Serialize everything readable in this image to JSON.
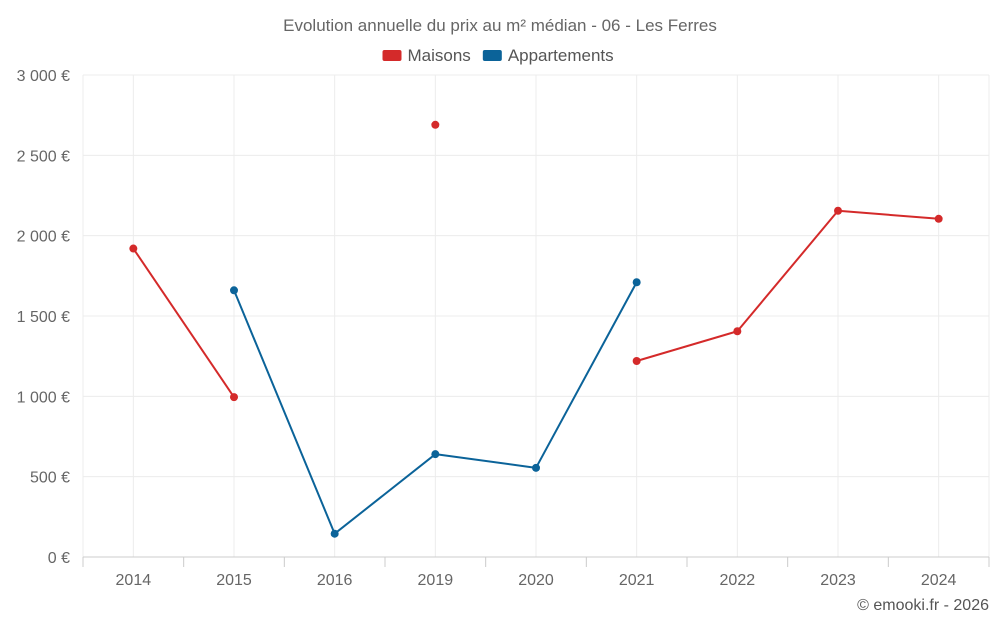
{
  "chart_data": {
    "type": "line",
    "title": "Evolution annuelle du prix au m² médian - 06 - Les Ferres",
    "categories": [
      "2014",
      "2015",
      "2016",
      "2019",
      "2020",
      "2021",
      "2022",
      "2023",
      "2024"
    ],
    "series": [
      {
        "name": "Maisons",
        "color": "#d42a2a",
        "values": [
          1920,
          995,
          null,
          2690,
          null,
          1220,
          1405,
          2155,
          2105
        ]
      },
      {
        "name": "Appartements",
        "color": "#0b6399",
        "values": [
          null,
          1660,
          145,
          640,
          555,
          1710,
          null,
          null,
          null
        ]
      }
    ],
    "ylim": [
      0,
      3000
    ],
    "yticks": [
      0,
      500,
      1000,
      1500,
      2000,
      2500,
      3000
    ],
    "ytick_labels": [
      "0 €",
      "500 €",
      "1 000 €",
      "1 500 €",
      "2 000 €",
      "2 500 €",
      "3 000 €"
    ],
    "xlabel": "",
    "ylabel": "",
    "grid": true,
    "legend_position": "top-center"
  },
  "credit": "© emooki.fr - 2026"
}
